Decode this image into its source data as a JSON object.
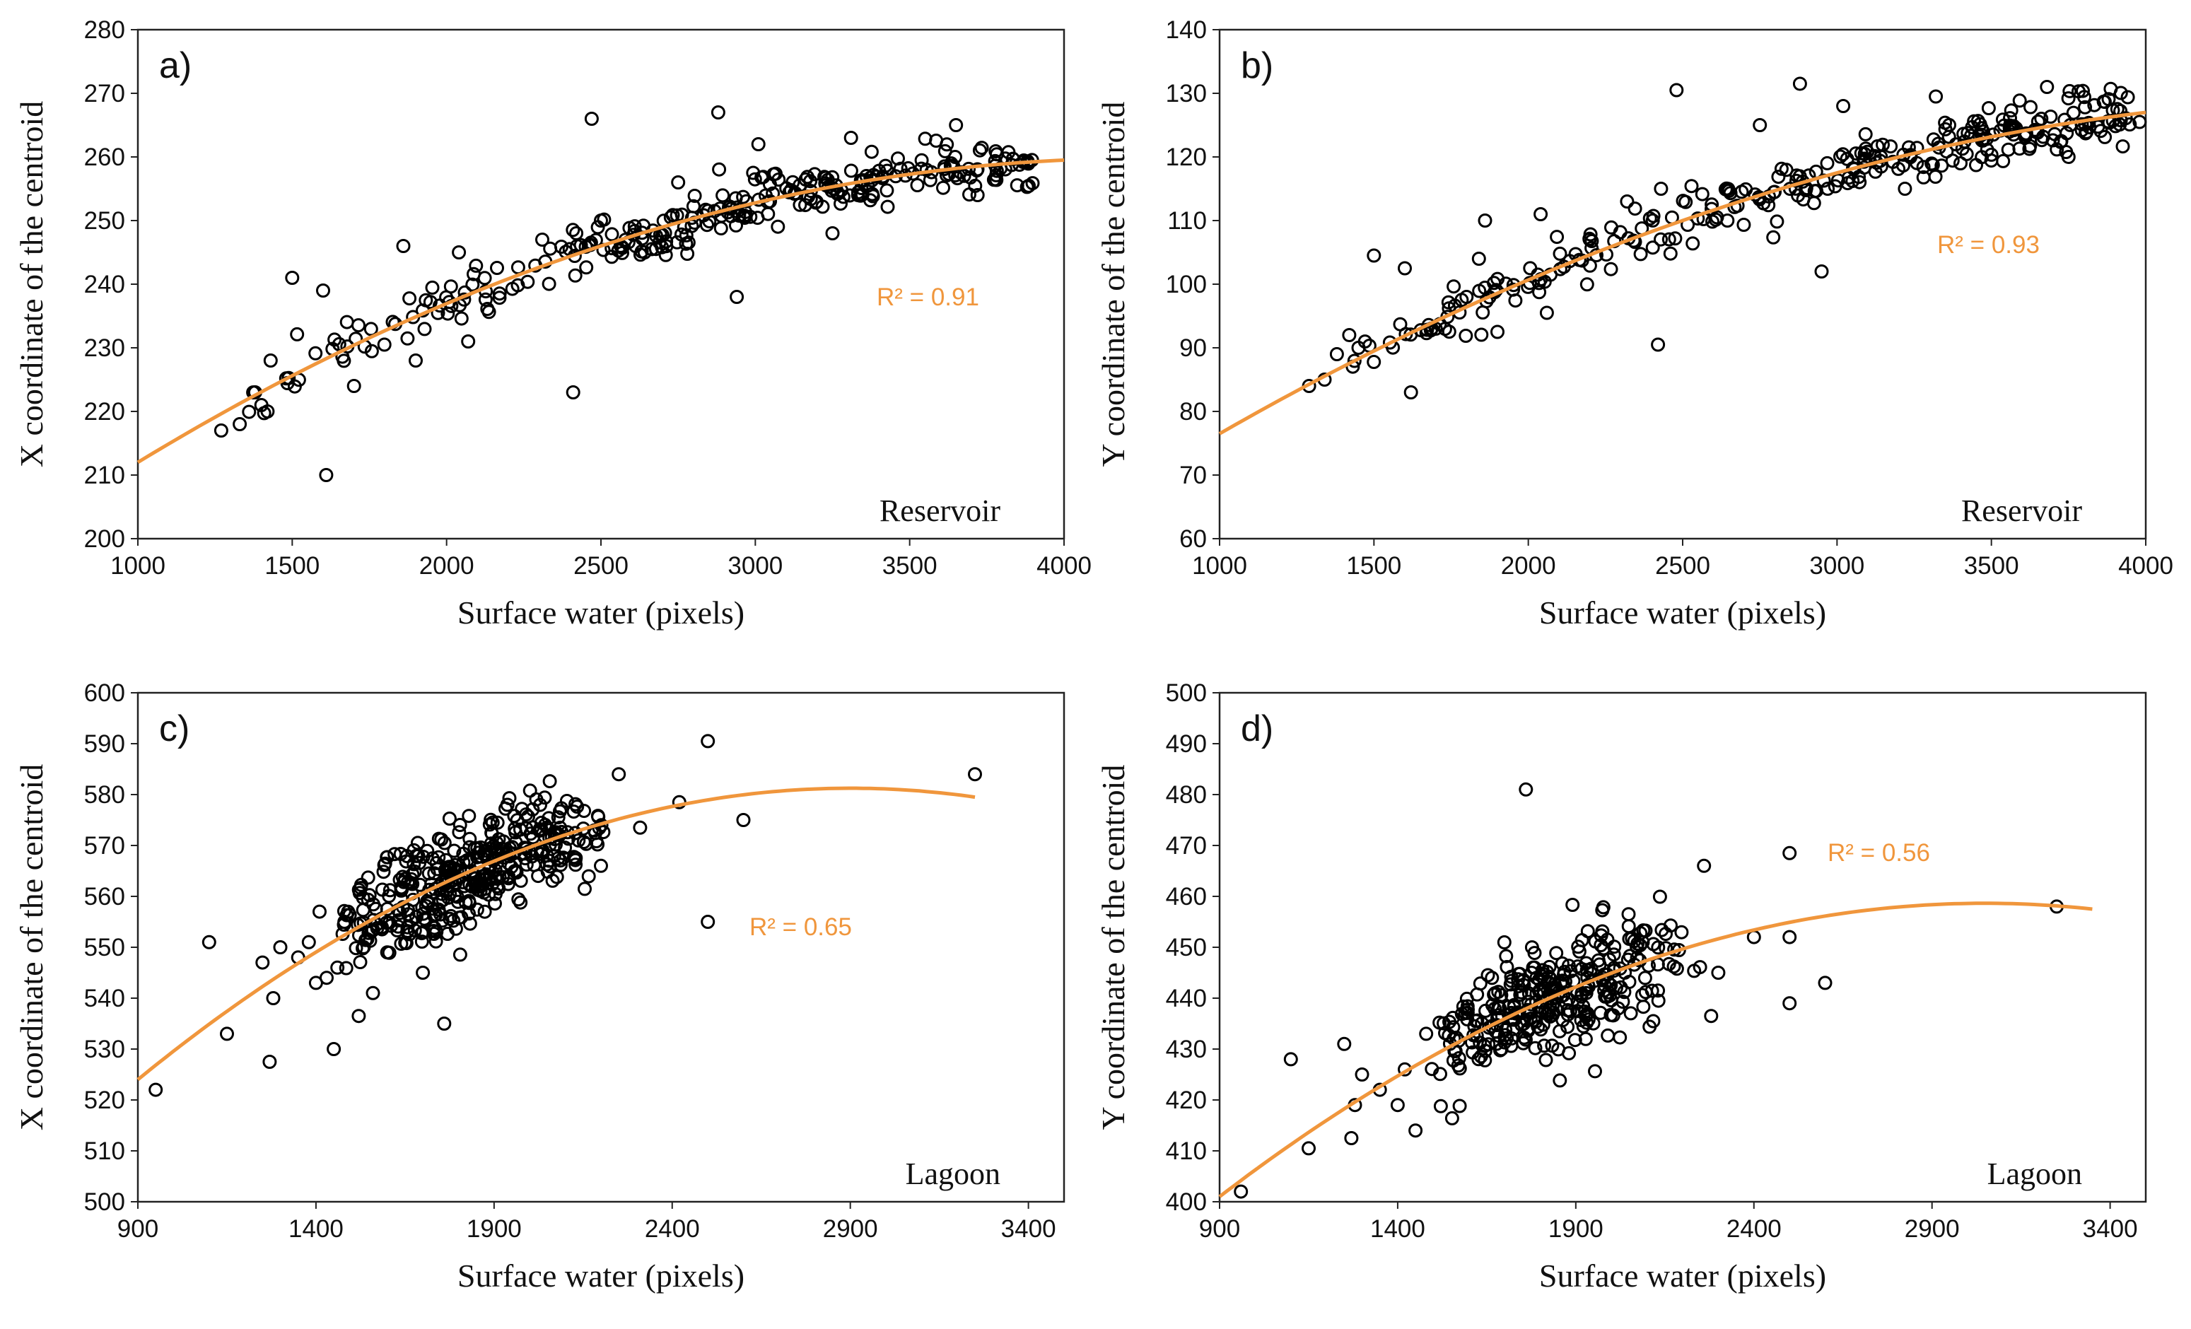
{
  "chart_data": [
    {
      "type": "scatter",
      "panel": "a)",
      "site": "Reservoir",
      "r2": "R² = 0.91",
      "xlabel": "Surface water (pixels)",
      "ylabel": "X coordinate of the centroid",
      "xlim": [
        1000,
        4000
      ],
      "ylim": [
        200,
        280
      ],
      "xticks": [
        "1000",
        "1500",
        "2000",
        "2500",
        "3000",
        "3500",
        "4000"
      ],
      "yticks": [
        "200",
        "210",
        "220",
        "230",
        "240",
        "250",
        "260",
        "270",
        "280"
      ],
      "trend": {
        "type": "quadratic",
        "x_range": [
          1000,
          4000
        ],
        "points": [
          [
            1000,
            212
          ],
          [
            2500,
            246
          ],
          [
            4000,
            259.5
          ]
        ]
      },
      "cloud": {
        "n": 300,
        "x_center": 2900,
        "x_spread": 1400,
        "x_min": 1280,
        "x_max": 3900,
        "noise": 2.2,
        "seed": 11
      },
      "points": [
        [
          1270,
          217
        ],
        [
          1330,
          218
        ],
        [
          1380,
          223
        ],
        [
          1400,
          221
        ],
        [
          1420,
          220
        ],
        [
          1430,
          228
        ],
        [
          1500,
          241
        ],
        [
          1600,
          239
        ],
        [
          1610,
          210
        ],
        [
          1700,
          224
        ],
        [
          1860,
          246
        ],
        [
          1900,
          228
        ],
        [
          2040,
          245
        ],
        [
          2070,
          231
        ],
        [
          2310,
          247
        ],
        [
          2410,
          223
        ],
        [
          2420,
          248
        ],
        [
          2470,
          266
        ],
        [
          2500,
          250
        ],
        [
          2750,
          256
        ],
        [
          2880,
          267
        ],
        [
          2940,
          238
        ],
        [
          3010,
          262
        ],
        [
          3250,
          248
        ],
        [
          3310,
          263
        ],
        [
          3360,
          257
        ],
        [
          3650,
          265
        ],
        [
          3720,
          254
        ]
      ]
    },
    {
      "type": "scatter",
      "panel": "b)",
      "site": "Reservoir",
      "r2": "R² = 0.93",
      "xlabel": "Surface water (pixels)",
      "ylabel": "Y coordinate of the centroid",
      "xlim": [
        1000,
        4000
      ],
      "ylim": [
        60,
        140
      ],
      "xticks": [
        "1000",
        "1500",
        "2000",
        "2500",
        "3000",
        "3500",
        "4000"
      ],
      "yticks": [
        "60",
        "70",
        "80",
        "90",
        "100",
        "110",
        "120",
        "130",
        "140"
      ],
      "trend": {
        "type": "quadratic",
        "x_range": [
          1000,
          4000
        ],
        "points": [
          [
            1000,
            76.5
          ],
          [
            2500,
            110
          ],
          [
            4000,
            127
          ]
        ]
      },
      "cloud": {
        "n": 300,
        "x_center": 2900,
        "x_spread": 1400,
        "x_min": 1280,
        "x_max": 3950,
        "noise": 2.0,
        "seed": 23
      },
      "points": [
        [
          1290,
          84
        ],
        [
          1340,
          85
        ],
        [
          1380,
          89
        ],
        [
          1420,
          92
        ],
        [
          1450,
          90
        ],
        [
          1500,
          104.5
        ],
        [
          1600,
          102.5
        ],
        [
          1620,
          83
        ],
        [
          1700,
          93
        ],
        [
          1800,
          98
        ],
        [
          1840,
          104
        ],
        [
          1860,
          110
        ],
        [
          1900,
          92.5
        ],
        [
          2040,
          111
        ],
        [
          2060,
          95.5
        ],
        [
          2320,
          113
        ],
        [
          2420,
          90.5
        ],
        [
          2430,
          115
        ],
        [
          2480,
          130.5
        ],
        [
          2750,
          125
        ],
        [
          2880,
          131.5
        ],
        [
          2950,
          102
        ],
        [
          3020,
          128
        ],
        [
          3220,
          115
        ],
        [
          3320,
          129.5
        ],
        [
          3400,
          119
        ],
        [
          3680,
          131
        ],
        [
          3750,
          120
        ],
        [
          3980,
          125.5
        ]
      ]
    },
    {
      "type": "scatter",
      "panel": "c)",
      "site": "Lagoon",
      "r2": "R² = 0.65",
      "xlabel": "Surface water (pixels)",
      "ylabel": "X coordinate of the centroid",
      "xlim": [
        900,
        3500
      ],
      "ylim": [
        500,
        600
      ],
      "xticks": [
        "900",
        "1400",
        "1900",
        "2400",
        "2900",
        "3400"
      ],
      "yticks": [
        "500",
        "510",
        "520",
        "530",
        "540",
        "550",
        "560",
        "570",
        "580",
        "590",
        "600"
      ],
      "trend": {
        "type": "quadratic",
        "x_range": [
          900,
          3250
        ],
        "points": [
          [
            900,
            524
          ],
          [
            2075,
            571.5
          ],
          [
            3250,
            579.5
          ]
        ]
      },
      "cloud": {
        "n": 380,
        "x_center": 1820,
        "x_spread": 620,
        "x_min": 1470,
        "x_max": 2250,
        "noise": 5.0,
        "seed": 37
      },
      "points": [
        [
          950,
          522
        ],
        [
          1100,
          551
        ],
        [
          1150,
          533
        ],
        [
          1250,
          547
        ],
        [
          1270,
          527.5
        ],
        [
          1280,
          540
        ],
        [
          1300,
          550
        ],
        [
          1350,
          548
        ],
        [
          1380,
          551
        ],
        [
          1400,
          543
        ],
        [
          1410,
          557
        ],
        [
          1430,
          544
        ],
        [
          1450,
          530
        ],
        [
          1460,
          546
        ],
        [
          1480,
          555
        ],
        [
          1520,
          536.5
        ],
        [
          1560,
          541
        ],
        [
          1600,
          549
        ],
        [
          1700,
          545
        ],
        [
          1760,
          535
        ],
        [
          2200,
          566
        ],
        [
          2250,
          584
        ],
        [
          2310,
          573.5
        ],
        [
          2420,
          578.5
        ],
        [
          2500,
          590.5
        ],
        [
          2500,
          555
        ],
        [
          2600,
          575
        ],
        [
          3250,
          584
        ]
      ]
    },
    {
      "type": "scatter",
      "panel": "d)",
      "site": "Lagoon",
      "r2": "R² = 0.56",
      "xlabel": "Surface water (pixels)",
      "ylabel": "Y coordinate of the centroid",
      "xlim": [
        900,
        3500
      ],
      "ylim": [
        400,
        500
      ],
      "xticks": [
        "900",
        "1400",
        "1900",
        "2400",
        "2900",
        "3400"
      ],
      "yticks": [
        "400",
        "410",
        "420",
        "430",
        "440",
        "450",
        "460",
        "470",
        "480",
        "490",
        "500"
      ],
      "trend": {
        "type": "quadratic",
        "x_range": [
          900,
          3350
        ],
        "points": [
          [
            900,
            401
          ],
          [
            2125,
            448
          ],
          [
            3350,
            457.5
          ]
        ]
      },
      "cloud": {
        "n": 320,
        "x_center": 1830,
        "x_spread": 640,
        "x_min": 1480,
        "x_max": 2250,
        "noise": 6.0,
        "seed": 53
      },
      "points": [
        [
          960,
          402
        ],
        [
          1100,
          428
        ],
        [
          1150,
          410.5
        ],
        [
          1250,
          431
        ],
        [
          1270,
          412.5
        ],
        [
          1280,
          419
        ],
        [
          1300,
          425
        ],
        [
          1350,
          422
        ],
        [
          1400,
          419
        ],
        [
          1420,
          426
        ],
        [
          1450,
          414
        ],
        [
          1480,
          433
        ],
        [
          1760,
          481
        ],
        [
          2260,
          466
        ],
        [
          2300,
          445
        ],
        [
          2280,
          436.5
        ],
        [
          2400,
          452
        ],
        [
          2500,
          468.5
        ],
        [
          2500,
          452
        ],
        [
          2500,
          439
        ],
        [
          2600,
          443
        ],
        [
          3250,
          458
        ]
      ]
    }
  ]
}
